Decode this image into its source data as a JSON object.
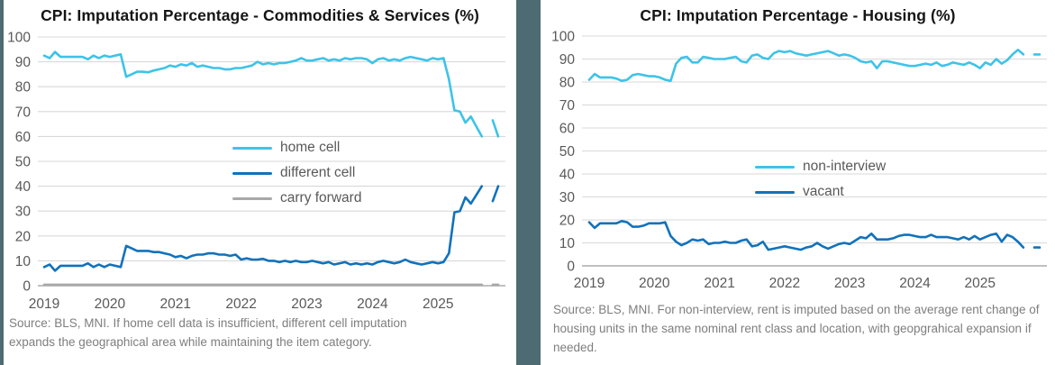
{
  "style": {
    "accent_cyan": "#3EC3E8",
    "accent_blue": "#1172BB",
    "accent_gray": "#A8A8A8",
    "divider_color": "#4E6A73",
    "gridline_color": "#D9D9D9",
    "axis_line_color": "#ABABAB",
    "tick_label_color": "#595959",
    "title_color": "#151515",
    "footnote_color": "#7E7E7E"
  },
  "chart_data": [
    {
      "type": "line",
      "title": "CPI: Imputation Percentage - Commodities & Services (%)",
      "x_unit": "monthly",
      "x_start": "2019-01",
      "xticks": [
        "2019",
        "2020",
        "2021",
        "2022",
        "2023",
        "2024",
        "2025"
      ],
      "ylim": [
        0,
        100
      ],
      "yticks": [
        100,
        90,
        80,
        70,
        60,
        50,
        40,
        30,
        20,
        10,
        0
      ],
      "grid": true,
      "legend_position": "inside-center",
      "series": [
        {
          "name": "home cell",
          "color": "#3EC3E8",
          "values": [
            92.5,
            91.5,
            94,
            92,
            92,
            92,
            92,
            92,
            91,
            92.5,
            91.5,
            92.5,
            92,
            92.5,
            93,
            84,
            85,
            86,
            86,
            85.8,
            86.5,
            87,
            87.5,
            88.5,
            88,
            89,
            88.5,
            89.5,
            88,
            88.5,
            88,
            87.5,
            87.5,
            87,
            87,
            87.5,
            87.5,
            88,
            88.5,
            90,
            89,
            89.5,
            89,
            89.5,
            89.5,
            90,
            90.5,
            91.5,
            90.5,
            90.5,
            91,
            91.5,
            90.5,
            91,
            90.5,
            91.5,
            91,
            91.5,
            91.5,
            91,
            89.5,
            91,
            91.5,
            90.5,
            91,
            90.5,
            91.5,
            92,
            91.5,
            91,
            90.5,
            91.5,
            91,
            91.5,
            83,
            70.5,
            70,
            65.5,
            68,
            64,
            60,
            null,
            66.5,
            60
          ]
        },
        {
          "name": "different cell",
          "color": "#1172BB",
          "values": [
            7.5,
            8.5,
            6,
            8,
            8,
            8,
            8,
            8,
            9,
            7.5,
            8.5,
            7.5,
            8.5,
            8,
            7.5,
            16,
            15,
            14,
            14,
            14,
            13.5,
            13.5,
            13,
            12.5,
            11.5,
            12,
            11,
            12,
            12.5,
            12.5,
            13,
            13,
            12.5,
            12.5,
            12,
            12.5,
            10.5,
            11,
            10.5,
            10.5,
            10.8,
            10,
            10,
            9.5,
            10,
            9.5,
            10,
            9.5,
            9.5,
            10,
            9.5,
            9,
            9.5,
            8.5,
            9,
            9.5,
            8.5,
            9,
            8.5,
            9,
            8.5,
            9.5,
            10,
            9.5,
            9,
            9.5,
            10.5,
            9.5,
            9,
            8.5,
            9,
            9.5,
            9,
            9.5,
            13,
            29.5,
            30,
            35.5,
            33,
            36.5,
            40,
            null,
            34,
            40
          ]
        },
        {
          "name": "carry forward",
          "color": "#A8A8A8",
          "values": [
            0.4,
            0.4,
            0.4,
            0.4,
            0.4,
            0.4,
            0.4,
            0.4,
            0.4,
            0.4,
            0.4,
            0.4,
            0.4,
            0.4,
            0.4,
            0.4,
            0.4,
            0.4,
            0.4,
            0.4,
            0.4,
            0.4,
            0.4,
            0.4,
            0.4,
            0.4,
            0.4,
            0.4,
            0.4,
            0.4,
            0.4,
            0.4,
            0.4,
            0.4,
            0.4,
            0.4,
            0.4,
            0.4,
            0.4,
            0.4,
            0.4,
            0.4,
            0.4,
            0.4,
            0.4,
            0.4,
            0.4,
            0.4,
            0.4,
            0.4,
            0.4,
            0.4,
            0.4,
            0.4,
            0.4,
            0.4,
            0.4,
            0.4,
            0.4,
            0.4,
            0.4,
            0.4,
            0.4,
            0.4,
            0.4,
            0.4,
            0.4,
            0.4,
            0.4,
            0.4,
            0.4,
            0.4,
            0.4,
            0.4,
            0.4,
            0.4,
            0.4,
            0.4,
            0.4,
            0.4,
            0.4,
            null,
            0.4,
            0.4
          ]
        }
      ],
      "source_note": "Source: BLS, MNI. If home cell data is insufficient, different cell imputation expands the geographical area while maintaining the item category."
    },
    {
      "type": "line",
      "title": "CPI: Imputation Percentage - Housing (%)",
      "x_unit": "monthly",
      "x_start": "2019-01",
      "xticks": [
        "2019",
        "2020",
        "2021",
        "2022",
        "2023",
        "2024",
        "2025"
      ],
      "ylim": [
        0,
        100
      ],
      "yticks": [
        100,
        90,
        80,
        70,
        60,
        50,
        40,
        30,
        20,
        10,
        0
      ],
      "grid": true,
      "legend_position": "inside-center",
      "series": [
        {
          "name": "non-interview",
          "color": "#3EC3E8",
          "values": [
            81,
            83.5,
            82,
            82,
            82,
            81.5,
            80.5,
            81,
            83,
            83.5,
            83,
            82.5,
            82.5,
            82,
            81,
            80.5,
            88,
            90.5,
            91,
            88.5,
            88.5,
            91,
            90.5,
            90,
            90,
            90,
            90.5,
            91,
            89,
            88.5,
            91.5,
            92,
            90.5,
            90,
            92.5,
            93.5,
            93,
            93.5,
            92.5,
            92,
            91.5,
            92,
            92.5,
            93,
            93.5,
            92.5,
            91.5,
            92,
            91.5,
            90.5,
            89,
            88.5,
            89,
            86,
            89,
            89,
            88.5,
            88,
            87.5,
            87,
            87,
            87.5,
            88,
            87.5,
            88.5,
            87,
            87.5,
            88.5,
            88,
            87.5,
            88.5,
            87.5,
            86,
            88.5,
            87.5,
            90,
            88,
            89.5,
            92,
            94,
            92,
            null,
            92,
            92
          ]
        },
        {
          "name": "vacant",
          "color": "#1172BB",
          "values": [
            19,
            16.5,
            18.5,
            18.5,
            18.5,
            18.5,
            19.5,
            19,
            17,
            17,
            17.5,
            18.5,
            18.5,
            18.5,
            19,
            13,
            10.5,
            9,
            10,
            11.5,
            11,
            11.5,
            9.5,
            10,
            10,
            10.5,
            10,
            10,
            11,
            11.5,
            8.5,
            9,
            10.5,
            7,
            7.5,
            8,
            8.5,
            8,
            7.5,
            7,
            8,
            8.5,
            10,
            8.5,
            7.5,
            8.5,
            9.5,
            10,
            9.5,
            11,
            12.5,
            12,
            14,
            11.5,
            11.5,
            11.5,
            12,
            13,
            13.5,
            13.5,
            13,
            12.5,
            12.5,
            13.5,
            12.5,
            12.5,
            12.5,
            12,
            11.5,
            12.5,
            11.5,
            13,
            11.5,
            12.5,
            13.5,
            14,
            10.5,
            13.5,
            12.5,
            10.5,
            8,
            null,
            8,
            8
          ]
        }
      ],
      "source_note": "Source: BLS, MNI. For non-interview, rent is imputed based on the average rent change of housing units in the same nominal rent class and location, with geopgrahical expansion if needed."
    }
  ]
}
